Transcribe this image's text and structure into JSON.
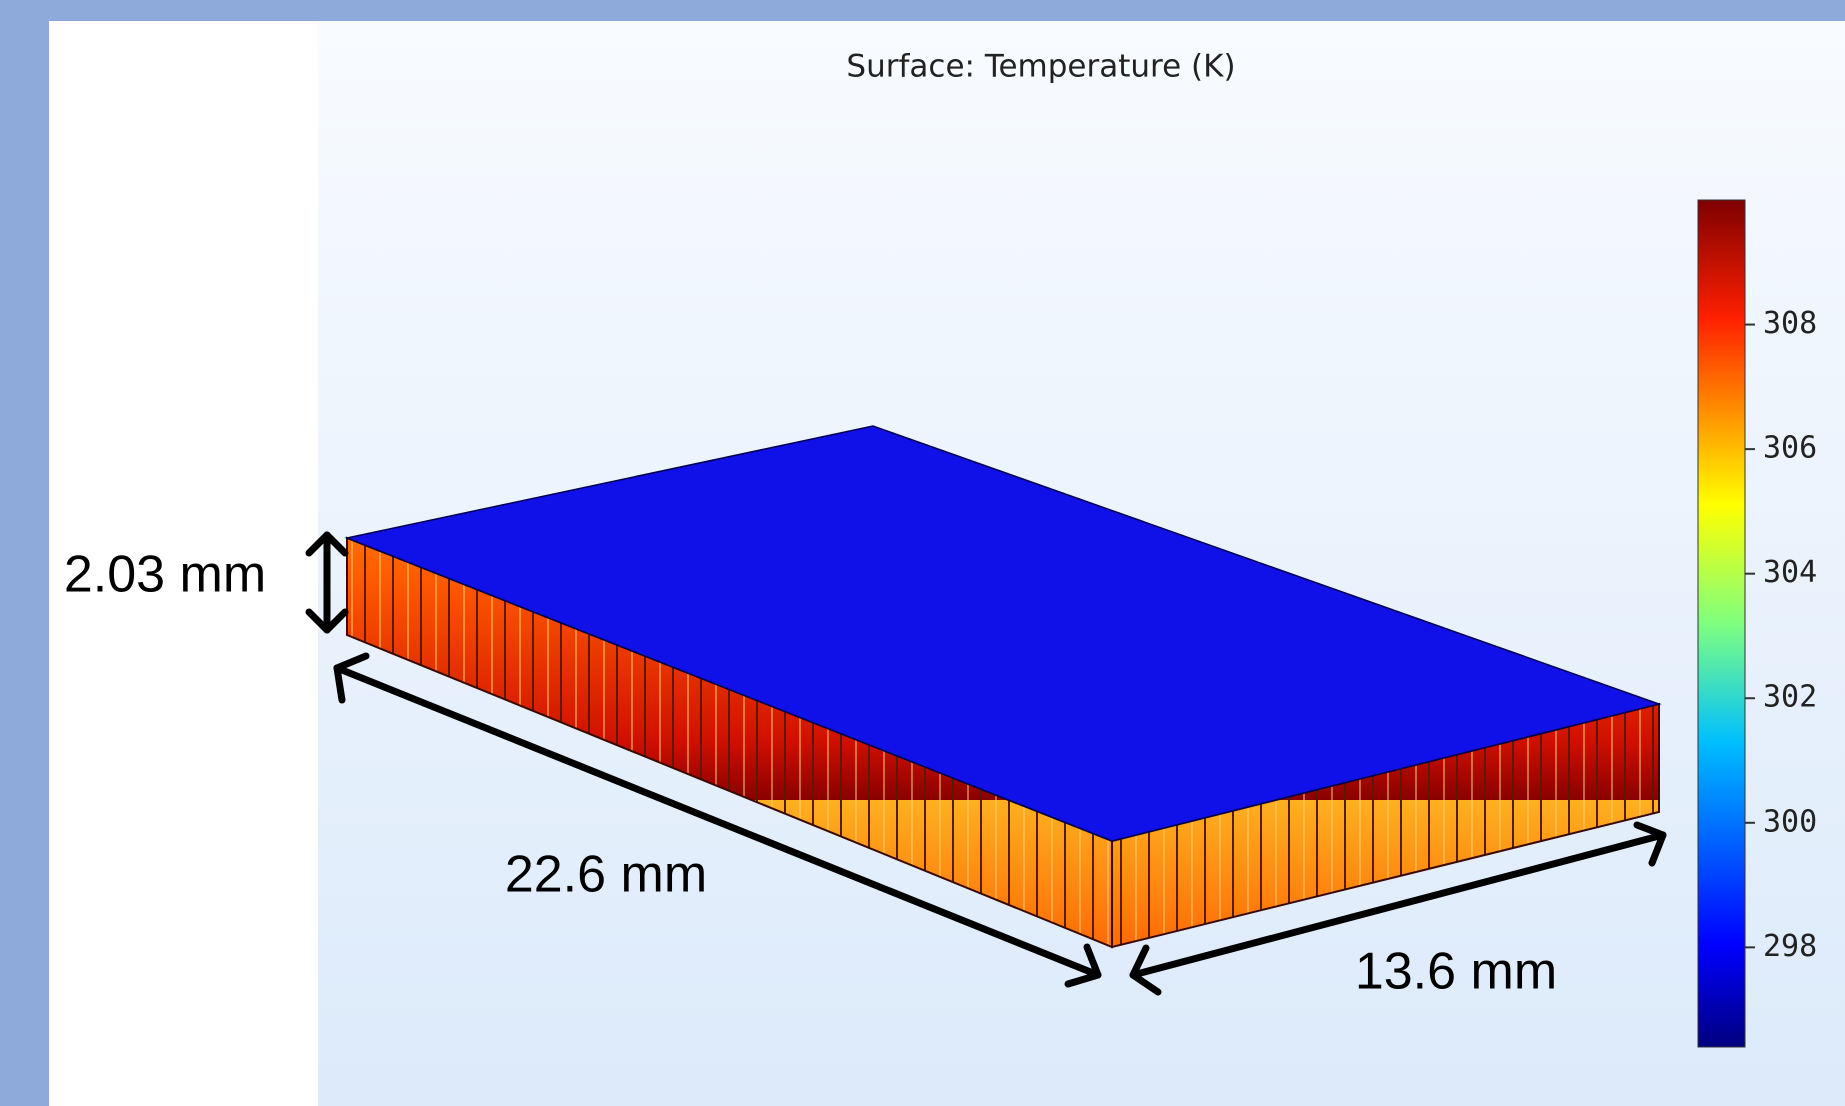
{
  "plot": {
    "title": "Surface: Temperature (K)",
    "colorbar": {
      "range": [
        296.4,
        310
      ],
      "ticks": [
        298,
        300,
        302,
        304,
        306,
        308
      ]
    },
    "dimensions": {
      "height": "2.03 mm",
      "length": "22.6 mm",
      "width": "13.6 mm"
    }
  }
}
